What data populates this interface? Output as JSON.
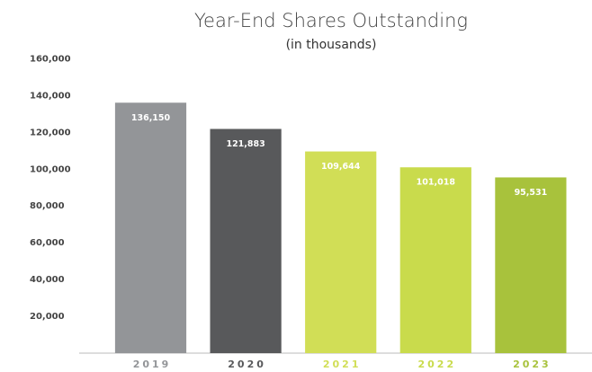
{
  "chart_data": {
    "type": "bar",
    "title": "Year-End Shares Outstanding",
    "subtitle": "(in thousands)",
    "categories": [
      "2019",
      "2020",
      "2021",
      "2022",
      "2023"
    ],
    "values": [
      136150,
      121883,
      109644,
      101018,
      95531
    ],
    "value_labels": [
      "136,150",
      "121,883",
      "109,644",
      "101,018",
      "95,531"
    ],
    "colors": [
      "#939598",
      "#58595b",
      "#d1de56",
      "#c9db4c",
      "#a8c23c"
    ],
    "ylim": [
      0,
      170000
    ],
    "yticks": [
      {
        "value": 20000,
        "label": "20,000"
      },
      {
        "value": 40000,
        "label": "40,000"
      },
      {
        "value": 60000,
        "label": "60,000"
      },
      {
        "value": 80000,
        "label": "80,000"
      },
      {
        "value": 100000,
        "label": "100,000"
      },
      {
        "value": 120000,
        "label": "120,000"
      },
      {
        "value": 140000,
        "label": "140,000"
      },
      {
        "value": 160000,
        "label": "160,000"
      }
    ],
    "grid": false
  }
}
